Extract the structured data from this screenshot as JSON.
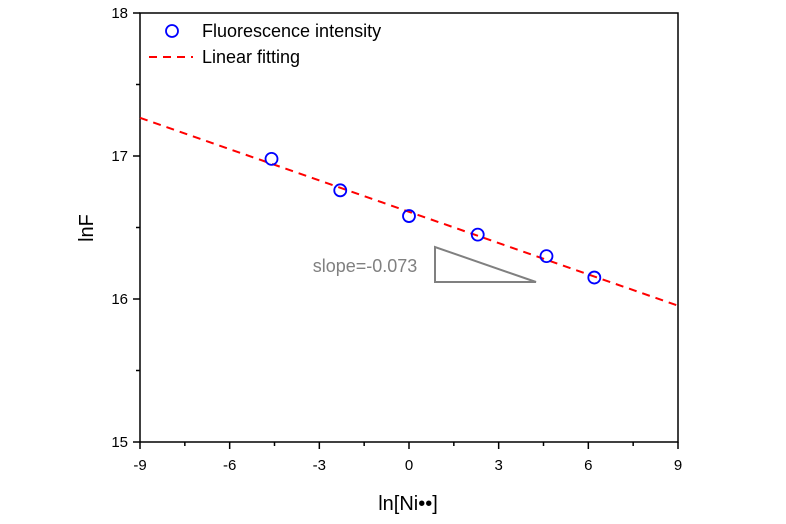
{
  "chart_data": {
    "type": "scatter",
    "title": "",
    "xlabel": "ln[Ni••]",
    "ylabel": "lnF",
    "xlim": [
      -9,
      9
    ],
    "ylim": [
      15,
      18
    ],
    "xticks": [
      -9,
      -6,
      -3,
      0,
      3,
      6,
      9
    ],
    "yticks": [
      15,
      16,
      17,
      18
    ],
    "x_tick_labels": [
      "-9",
      "-6",
      "-3",
      "0",
      "3",
      "6",
      "9"
    ],
    "y_tick_labels": [
      "15",
      "16",
      "17",
      "18"
    ],
    "grid": false,
    "legend_position": "top-left",
    "series": [
      {
        "name": "Fluorescence intensity",
        "kind": "scatter",
        "marker": "open-circle",
        "color": "#0000ff",
        "x": [
          -4.6,
          -2.3,
          0,
          2.3,
          4.6,
          6.2
        ],
        "y": [
          16.98,
          16.76,
          16.58,
          16.45,
          16.3,
          16.15
        ]
      },
      {
        "name": "Linear fitting",
        "kind": "line",
        "style": "dashed",
        "color": "#ff0000",
        "slope": -0.073,
        "intercept": 16.61
      }
    ],
    "annotations": [
      {
        "text": "slope=-0.073",
        "color": "#808080"
      }
    ]
  }
}
